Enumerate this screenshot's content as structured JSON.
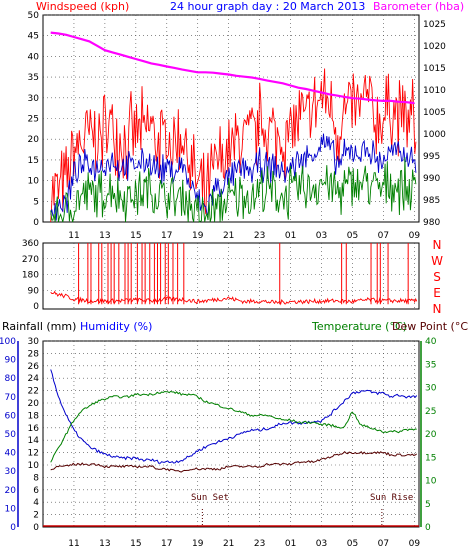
{
  "header": {
    "wind_title": "Windspeed (kph)",
    "graph_title": "24 hour graph day : 20 March 2013",
    "baro_title": "Barometer (hba)"
  },
  "colors": {
    "gust": "#ff0000",
    "wind_avg": "#0000cc",
    "wind_min": "#008000",
    "barometer": "#ff00ff",
    "direction": "#ff0000",
    "humidity": "#0000cc",
    "temperature": "#008000",
    "dewpoint": "#550000",
    "rainfall": "#cc0000",
    "left_axis": "#0000cc",
    "right_axis": "#008000",
    "title_red": "#ff0000",
    "title_blue": "#0000ff",
    "title_magenta": "#ff00ff"
  },
  "time_ticks": [
    "11",
    "13",
    "15",
    "17",
    "19",
    "21",
    "23",
    "01",
    "03",
    "05",
    "07",
    "09"
  ],
  "panel1": {
    "wind_ticks": [
      "0",
      "5",
      "10",
      "15",
      "20",
      "25",
      "30",
      "35",
      "40",
      "45",
      "50"
    ],
    "baro_ticks": [
      "980",
      "985",
      "990",
      "995",
      "1000",
      "1005",
      "1010",
      "1015",
      "1020",
      "1025"
    ]
  },
  "panel2": {
    "deg_ticks": [
      "0",
      "90",
      "180",
      "270",
      "360"
    ],
    "compass": [
      "N",
      "W",
      "S",
      "E",
      "N"
    ]
  },
  "panel3": {
    "rain_title": "Rainfall (mm)",
    "humidity_title": "Humidity (%)",
    "temp_title": "Temperature (°C)",
    "dew_title": "Dew Point (°C)",
    "humidity_ticks": [
      "0",
      "10",
      "20",
      "30",
      "40",
      "50",
      "60",
      "70",
      "80",
      "90",
      "100"
    ],
    "rain_ticks": [
      "0",
      "2",
      "4",
      "6",
      "8",
      "10",
      "12",
      "14",
      "16",
      "18",
      "20",
      "22",
      "24",
      "26",
      "28",
      "30"
    ],
    "temp_ticks": [
      "0",
      "5",
      "10",
      "15",
      "20",
      "25",
      "30",
      "35",
      "40"
    ],
    "sunset_label": "Sun Set",
    "sunrise_label": "Sun Rise"
  },
  "chart_data": [
    {
      "type": "line",
      "x_unit": "hour of day",
      "x": [
        9.5,
        10,
        10.5,
        11,
        11.5,
        12,
        12.5,
        13,
        13.5,
        14,
        14.5,
        15,
        15.5,
        16,
        16.5,
        17,
        17.5,
        18,
        18.5,
        19,
        19.5,
        20,
        20.5,
        21,
        21.5,
        22,
        22.5,
        23,
        23.5,
        24,
        24.5,
        25,
        25.5,
        26,
        26.5,
        27,
        27.5,
        28,
        28.5,
        29,
        29.5,
        30,
        30.5,
        31,
        31.5,
        32,
        32.5,
        33
      ],
      "series": [
        {
          "name": "Windspeed (kph)",
          "axis": "left",
          "range": [
            0,
            50
          ],
          "values": [
            7,
            8,
            9,
            17,
            19,
            21,
            20,
            22,
            24,
            20,
            19,
            22,
            21,
            23,
            19,
            20,
            18,
            22,
            14,
            9,
            5,
            12,
            15,
            16,
            19,
            21,
            20,
            24,
            22,
            21,
            20,
            22,
            25,
            24,
            27,
            30,
            29,
            22,
            26,
            28,
            27,
            30,
            24,
            25,
            28,
            26,
            25,
            24
          ]
        },
        {
          "name": "wind average",
          "axis": "left",
          "range": [
            0,
            50
          ],
          "values": [
            3,
            4,
            5,
            11,
            13,
            14,
            13,
            14,
            15,
            13,
            13,
            14,
            14,
            15,
            12,
            13,
            12,
            14,
            9,
            5,
            3,
            7,
            9,
            10,
            12,
            13,
            12,
            14,
            13,
            13,
            12,
            13,
            15,
            15,
            17,
            19,
            18,
            14,
            16,
            17,
            17,
            18,
            15,
            15,
            17,
            16,
            16,
            15
          ]
        },
        {
          "name": "wind minimum",
          "axis": "left",
          "range": [
            0,
            50
          ],
          "values": [
            1,
            1,
            2,
            4,
            6,
            7,
            6,
            7,
            8,
            6,
            6,
            7,
            7,
            8,
            6,
            6,
            5,
            7,
            4,
            2,
            1,
            3,
            4,
            5,
            6,
            7,
            6,
            8,
            7,
            7,
            6,
            7,
            8,
            8,
            9,
            10,
            9,
            7,
            8,
            9,
            9,
            10,
            8,
            8,
            9,
            9,
            8,
            8
          ]
        },
        {
          "name": "Barometer (hba)",
          "axis": "right",
          "range": [
            980,
            1027
          ],
          "values": [
            1023,
            1022.8,
            1022.5,
            1022,
            1021.5,
            1021,
            1020,
            1019,
            1018.5,
            1018,
            1017.5,
            1017,
            1016.5,
            1016,
            1015.7,
            1015.3,
            1015,
            1014.6,
            1014.3,
            1014,
            1014,
            1013.9,
            1013.7,
            1013.5,
            1013.2,
            1013,
            1012.8,
            1012.5,
            1012.1,
            1011.8,
            1011.5,
            1011,
            1010.5,
            1010.2,
            1009.8,
            1009.4,
            1009,
            1008.7,
            1008.4,
            1008.1,
            1008,
            1007.8,
            1007.6,
            1007.5,
            1007.5,
            1007.3,
            1007.2,
            1007
          ]
        }
      ]
    },
    {
      "type": "scatter",
      "x_unit": "hour of day",
      "y_range": [
        0,
        360
      ],
      "base_x": [
        9.5,
        10,
        10.5,
        11,
        12,
        13,
        14,
        15,
        16,
        17,
        18,
        19,
        20,
        21,
        22,
        23,
        24,
        25,
        26,
        27,
        28,
        29,
        30,
        31,
        32,
        33
      ],
      "base_y": [
        80,
        65,
        55,
        40,
        30,
        28,
        30,
        35,
        30,
        40,
        38,
        25,
        35,
        45,
        25,
        28,
        20,
        25,
        25,
        28,
        30,
        25,
        35,
        30,
        30,
        28
      ],
      "spikes_x": [
        11.3,
        11.9,
        12.1,
        12.6,
        12.8,
        13.2,
        13.4,
        13.6,
        13.9,
        14.3,
        14.5,
        14.7,
        15.1,
        15.4,
        15.6,
        15.9,
        16.2,
        16.4,
        16.6,
        16.9,
        17.1,
        17.4,
        17.7,
        18.1,
        24.3,
        28.3,
        28.6,
        30.2,
        30.6,
        30.8,
        31.3,
        32.6
      ],
      "spike_y": 360
    },
    {
      "type": "line",
      "x_unit": "hour of day",
      "x": [
        9.5,
        10,
        10.5,
        11,
        11.5,
        12,
        12.5,
        13,
        13.5,
        14,
        14.5,
        15,
        15.5,
        16,
        16.5,
        17,
        17.5,
        18,
        18.5,
        19,
        19.5,
        20,
        20.5,
        21,
        21.5,
        22,
        22.5,
        23,
        23.5,
        24,
        24.5,
        25,
        25.5,
        26,
        26.5,
        27,
        27.5,
        28,
        28.5,
        29,
        29.5,
        30,
        30.5,
        31,
        31.5,
        32,
        32.5,
        33
      ],
      "series": [
        {
          "name": "Humidity (%)",
          "axis": "left",
          "range": [
            0,
            100
          ],
          "values": [
            85,
            70,
            60,
            52,
            47,
            43,
            41,
            39,
            38,
            37,
            37,
            37,
            36,
            36,
            35,
            35,
            35,
            36,
            38,
            41,
            43,
            45,
            46,
            48,
            49,
            51,
            52,
            52,
            53,
            54,
            56,
            56,
            56,
            56,
            57,
            57,
            60,
            64,
            68,
            72,
            73,
            73,
            72,
            72,
            70,
            71,
            70,
            70
          ]
        },
        {
          "name": "Temperature (°C)",
          "axis": "right",
          "range": [
            0,
            40
          ],
          "values": [
            14,
            17,
            20,
            23,
            25,
            26,
            27,
            27.5,
            28,
            28,
            28,
            28.5,
            28.5,
            28.5,
            29,
            29,
            29,
            28.5,
            28.5,
            28,
            27,
            26.5,
            26,
            25.5,
            25,
            24.5,
            24,
            24,
            24,
            23.5,
            23,
            23,
            22.5,
            22.5,
            22.5,
            22,
            22,
            21.5,
            21.5,
            25,
            22,
            21.5,
            21,
            20.5,
            20.5,
            20.5,
            21,
            21
          ]
        },
        {
          "name": "Dew Point (°C)",
          "axis": "right",
          "range": [
            0,
            40
          ],
          "values": [
            12.5,
            13,
            13,
            13.5,
            13.5,
            13.5,
            13.5,
            13,
            13,
            13,
            13,
            13,
            13,
            13,
            12.5,
            12.5,
            12,
            12,
            12.5,
            12.5,
            12.5,
            12.5,
            12.5,
            13,
            13,
            13,
            13,
            13,
            13.5,
            13.5,
            13.5,
            13.5,
            14,
            14,
            14,
            14.5,
            15,
            15.5,
            16,
            16,
            16,
            16,
            16,
            16,
            15.5,
            15.5,
            15.5,
            15.5
          ]
        },
        {
          "name": "Rainfall (mm)",
          "axis": "left2",
          "range": [
            0,
            30
          ],
          "values": [
            0,
            0,
            0,
            0,
            0,
            0,
            0,
            0,
            0,
            0,
            0,
            0,
            0,
            0,
            0,
            0,
            0,
            0,
            0,
            0,
            0,
            0,
            0,
            0,
            0,
            0,
            0,
            0,
            0,
            0,
            0,
            0,
            0,
            0,
            0,
            0,
            0,
            0,
            0,
            0,
            0,
            0,
            0,
            0,
            0,
            0,
            0,
            0
          ]
        }
      ],
      "annotations": [
        {
          "text": "Sun Set",
          "x": 19.3
        },
        {
          "text": "Sun Rise",
          "x": 30.9
        }
      ]
    }
  ]
}
